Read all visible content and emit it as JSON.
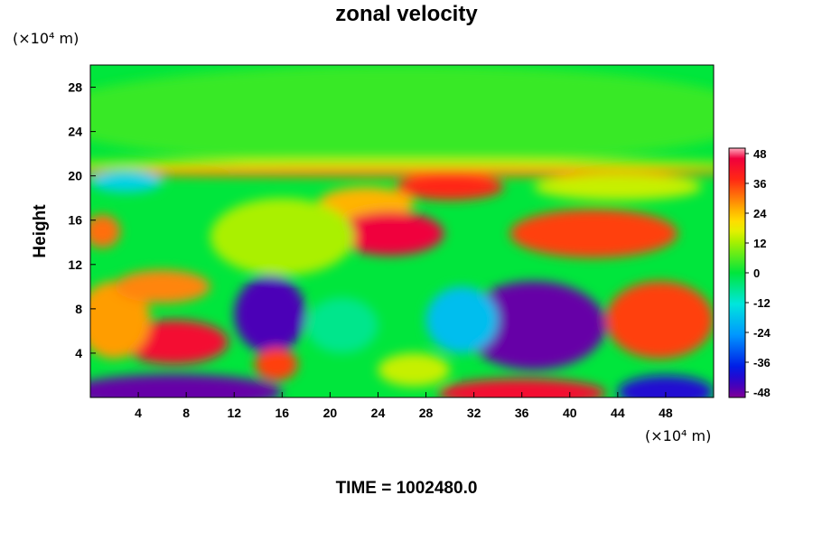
{
  "title": "zonal velocity",
  "footer": "TIME = 1002480.0",
  "chart_data": {
    "type": "heatmap",
    "title": "zonal velocity",
    "xlabel": "",
    "ylabel": "Height",
    "x_unit": "(×10⁴ m)",
    "y_unit": "(×10⁴ m)",
    "xlim": [
      0,
      52
    ],
    "ylim": [
      0,
      30
    ],
    "x_ticks": [
      4,
      8,
      12,
      16,
      20,
      24,
      28,
      32,
      36,
      40,
      44,
      48
    ],
    "y_ticks": [
      4,
      8,
      12,
      16,
      20,
      24,
      28
    ],
    "colorbar": {
      "ticks": [
        48,
        36,
        24,
        12,
        0,
        -12,
        -24,
        -36,
        -48
      ],
      "min": -48,
      "max": 48
    },
    "background_value": 0,
    "features": [
      {
        "x": 26,
        "y": 25.5,
        "rx": 30,
        "ry": 4.5,
        "value": 4
      },
      {
        "x": 26,
        "y": 21.0,
        "rx": 30,
        "ry": 0.5,
        "value": 14
      },
      {
        "x": 26,
        "y": 20.3,
        "rx": 30,
        "ry": 0.4,
        "value": 30
      },
      {
        "x": 3,
        "y": 19.5,
        "rx": 3,
        "ry": 1.0,
        "value": -15
      },
      {
        "x": 30,
        "y": 19.0,
        "rx": 4.5,
        "ry": 1.2,
        "value": 36
      },
      {
        "x": 23,
        "y": 17.5,
        "rx": 4,
        "ry": 1.5,
        "value": 24
      },
      {
        "x": 44,
        "y": 19.0,
        "rx": 7,
        "ry": 1.2,
        "value": 14
      },
      {
        "x": 25,
        "y": 14.8,
        "rx": 4.5,
        "ry": 2.0,
        "value": 44
      },
      {
        "x": 42,
        "y": 14.8,
        "rx": 7,
        "ry": 2.2,
        "value": 34
      },
      {
        "x": 1,
        "y": 15.0,
        "rx": 1.5,
        "ry": 1.5,
        "value": 30
      },
      {
        "x": 16,
        "y": 14.5,
        "rx": 6,
        "ry": 3.5,
        "value": 12
      },
      {
        "x": 15,
        "y": 7.5,
        "rx": 3,
        "ry": 3.5,
        "value": -44
      },
      {
        "x": 37,
        "y": 6.5,
        "rx": 6,
        "ry": 4.0,
        "value": -46
      },
      {
        "x": 31,
        "y": 7.0,
        "rx": 3,
        "ry": 3.0,
        "value": -18
      },
      {
        "x": 47.5,
        "y": 7.0,
        "rx": 4.5,
        "ry": 3.5,
        "value": 34
      },
      {
        "x": 7,
        "y": 5.0,
        "rx": 4.5,
        "ry": 2.0,
        "value": 42
      },
      {
        "x": 2,
        "y": 7.0,
        "rx": 3,
        "ry": 3.5,
        "value": 26
      },
      {
        "x": 6,
        "y": 10.0,
        "rx": 4,
        "ry": 1.5,
        "value": 28
      },
      {
        "x": 15.5,
        "y": 3.0,
        "rx": 1.8,
        "ry": 1.5,
        "value": 34
      },
      {
        "x": 7,
        "y": 0.5,
        "rx": 9,
        "ry": 1.6,
        "value": -46
      },
      {
        "x": 36,
        "y": 0.4,
        "rx": 7,
        "ry": 1.3,
        "value": 42
      },
      {
        "x": 48,
        "y": 0.5,
        "rx": 4,
        "ry": 1.5,
        "value": -40
      },
      {
        "x": 21,
        "y": 6.5,
        "rx": 3,
        "ry": 2.5,
        "value": -6
      },
      {
        "x": 27,
        "y": 2.5,
        "rx": 3,
        "ry": 1.5,
        "value": 14
      }
    ]
  }
}
